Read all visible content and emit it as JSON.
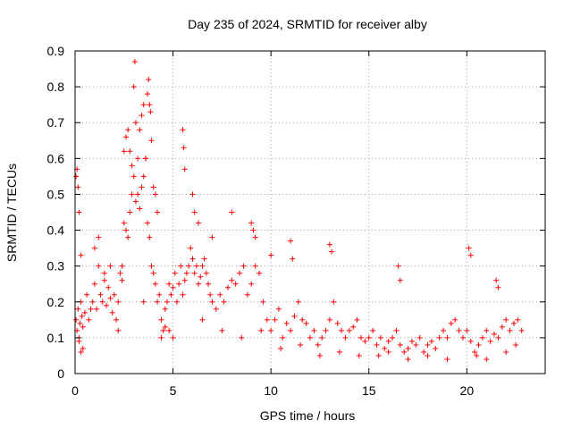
{
  "chart_data": {
    "type": "scatter",
    "title": "Day 235 of 2024, SRMTID for receiver alby",
    "xlabel": "GPS time / hours",
    "ylabel": "SRMTID / TECUs",
    "xlim": [
      0,
      24
    ],
    "ylim": [
      0,
      0.9
    ],
    "xticks": [
      "0",
      "5",
      "10",
      "15",
      "20"
    ],
    "yticks": [
      "0",
      "0.1",
      "0.2",
      "0.3",
      "0.4",
      "0.5",
      "0.6",
      "0.7",
      "0.8",
      "0.9"
    ],
    "grid": true,
    "marker": "+",
    "color": "#ff0000",
    "series": [
      {
        "name": "SRMTID",
        "x": [
          0.05,
          0.1,
          0.15,
          0.2,
          0.25,
          0.3,
          0.35,
          0.4,
          0.5,
          0.6,
          0.7,
          0.8,
          0.9,
          1.0,
          1.1,
          1.2,
          1.3,
          1.4,
          1.5,
          1.6,
          1.7,
          1.8,
          1.9,
          2.0,
          2.1,
          2.2,
          2.3,
          2.4,
          2.5,
          2.6,
          2.7,
          2.8,
          2.9,
          3.0,
          3.1,
          3.2,
          3.3,
          3.4,
          3.5,
          3.6,
          3.7,
          3.8,
          3.9,
          4.0,
          4.1,
          4.2,
          4.3,
          4.4,
          4.5,
          4.6,
          4.7,
          4.8,
          4.9,
          5.0,
          5.1,
          5.2,
          5.3,
          5.4,
          5.5,
          5.6,
          5.7,
          5.8,
          5.9,
          6.0,
          6.1,
          6.2,
          6.3,
          6.4,
          6.5,
          6.6,
          6.7,
          6.8,
          6.9,
          7.0,
          7.2,
          7.4,
          7.6,
          7.8,
          8.0,
          8.2,
          8.4,
          8.6,
          8.8,
          9.0,
          9.2,
          9.4,
          9.6,
          9.8,
          10.0,
          10.2,
          10.4,
          10.6,
          10.8,
          11.0,
          11.2,
          11.4,
          11.6,
          11.8,
          12.0,
          12.2,
          12.4,
          12.6,
          12.8,
          13.0,
          13.2,
          13.4,
          13.6,
          13.8,
          14.0,
          14.2,
          14.4,
          14.6,
          14.8,
          15.0,
          15.2,
          15.4,
          15.6,
          15.8,
          16.0,
          16.2,
          16.4,
          16.6,
          16.8,
          17.0,
          17.2,
          17.4,
          17.6,
          17.8,
          18.0,
          18.2,
          18.4,
          18.6,
          18.8,
          19.0,
          19.2,
          19.4,
          19.6,
          19.8,
          20.0,
          20.2,
          20.4,
          20.6,
          20.8,
          21.0,
          21.2,
          21.4,
          21.6,
          21.8,
          22.0,
          22.2,
          22.4,
          22.6,
          22.8,
          0.05,
          0.1,
          0.15,
          0.2,
          0.3,
          2.5,
          2.6,
          2.7,
          2.8,
          2.9,
          3.0,
          3.05,
          3.1,
          3.2,
          3.3,
          3.4,
          3.5,
          3.6,
          3.7,
          3.75,
          3.8,
          3.85,
          3.9,
          4.0,
          4.1,
          4.2,
          5.5,
          5.55,
          5.6,
          6.0,
          6.1,
          6.3,
          7.0,
          8.0,
          9.0,
          9.1,
          9.2,
          10.0,
          11.0,
          11.1,
          13.0,
          13.1,
          16.5,
          16.6,
          20.1,
          20.2,
          21.5,
          21.6,
          0.3,
          0.4,
          0.2,
          1.0,
          1.2,
          1.5,
          1.8,
          2.2,
          2.4,
          3.5,
          4.4,
          4.6,
          4.8,
          5.0,
          6.5,
          7.5,
          8.5,
          9.5,
          10.5,
          11.5,
          12.5,
          13.5,
          14.5,
          15.5,
          16.0,
          17.0,
          18.0,
          19.0,
          20.5,
          21.0,
          22.0,
          22.5
        ],
        "y": [
          0.15,
          0.12,
          0.18,
          0.1,
          0.14,
          0.2,
          0.16,
          0.13,
          0.17,
          0.22,
          0.15,
          0.18,
          0.2,
          0.25,
          0.18,
          0.3,
          0.22,
          0.2,
          0.26,
          0.19,
          0.24,
          0.21,
          0.17,
          0.22,
          0.15,
          0.2,
          0.28,
          0.3,
          0.42,
          0.4,
          0.38,
          0.45,
          0.5,
          0.55,
          0.48,
          0.5,
          0.46,
          0.52,
          0.55,
          0.6,
          0.42,
          0.38,
          0.3,
          0.28,
          0.25,
          0.2,
          0.22,
          0.15,
          0.12,
          0.18,
          0.2,
          0.25,
          0.22,
          0.24,
          0.28,
          0.2,
          0.25,
          0.3,
          0.22,
          0.26,
          0.28,
          0.3,
          0.35,
          0.32,
          0.28,
          0.3,
          0.25,
          0.27,
          0.3,
          0.32,
          0.28,
          0.25,
          0.22,
          0.2,
          0.18,
          0.22,
          0.2,
          0.24,
          0.26,
          0.25,
          0.28,
          0.3,
          0.22,
          0.25,
          0.3,
          0.28,
          0.2,
          0.15,
          0.12,
          0.15,
          0.18,
          0.1,
          0.14,
          0.12,
          0.16,
          0.2,
          0.15,
          0.14,
          0.1,
          0.12,
          0.08,
          0.1,
          0.12,
          0.15,
          0.2,
          0.14,
          0.12,
          0.1,
          0.12,
          0.13,
          0.15,
          0.1,
          0.09,
          0.1,
          0.12,
          0.08,
          0.1,
          0.07,
          0.09,
          0.1,
          0.12,
          0.08,
          0.06,
          0.07,
          0.09,
          0.08,
          0.1,
          0.06,
          0.08,
          0.09,
          0.07,
          0.1,
          0.12,
          0.1,
          0.14,
          0.15,
          0.12,
          0.1,
          0.12,
          0.09,
          0.06,
          0.08,
          0.1,
          0.12,
          0.09,
          0.11,
          0.1,
          0.13,
          0.15,
          0.12,
          0.14,
          0.15,
          0.12,
          0.55,
          0.57,
          0.52,
          0.45,
          0.33,
          0.62,
          0.66,
          0.68,
          0.62,
          0.58,
          0.8,
          0.87,
          0.7,
          0.6,
          0.68,
          0.72,
          0.75,
          0.6,
          0.78,
          0.82,
          0.75,
          0.73,
          0.65,
          0.52,
          0.5,
          0.45,
          0.68,
          0.63,
          0.57,
          0.5,
          0.45,
          0.42,
          0.38,
          0.45,
          0.42,
          0.4,
          0.38,
          0.33,
          0.37,
          0.32,
          0.36,
          0.34,
          0.3,
          0.26,
          0.35,
          0.33,
          0.26,
          0.24,
          0.06,
          0.07,
          0.09,
          0.35,
          0.38,
          0.28,
          0.3,
          0.12,
          0.26,
          0.2,
          0.1,
          0.13,
          0.12,
          0.1,
          0.15,
          0.12,
          0.1,
          0.12,
          0.07,
          0.08,
          0.05,
          0.06,
          0.05,
          0.05,
          0.06,
          0.04,
          0.05,
          0.04,
          0.05,
          0.04,
          0.06,
          0.08
        ]
      }
    ]
  }
}
